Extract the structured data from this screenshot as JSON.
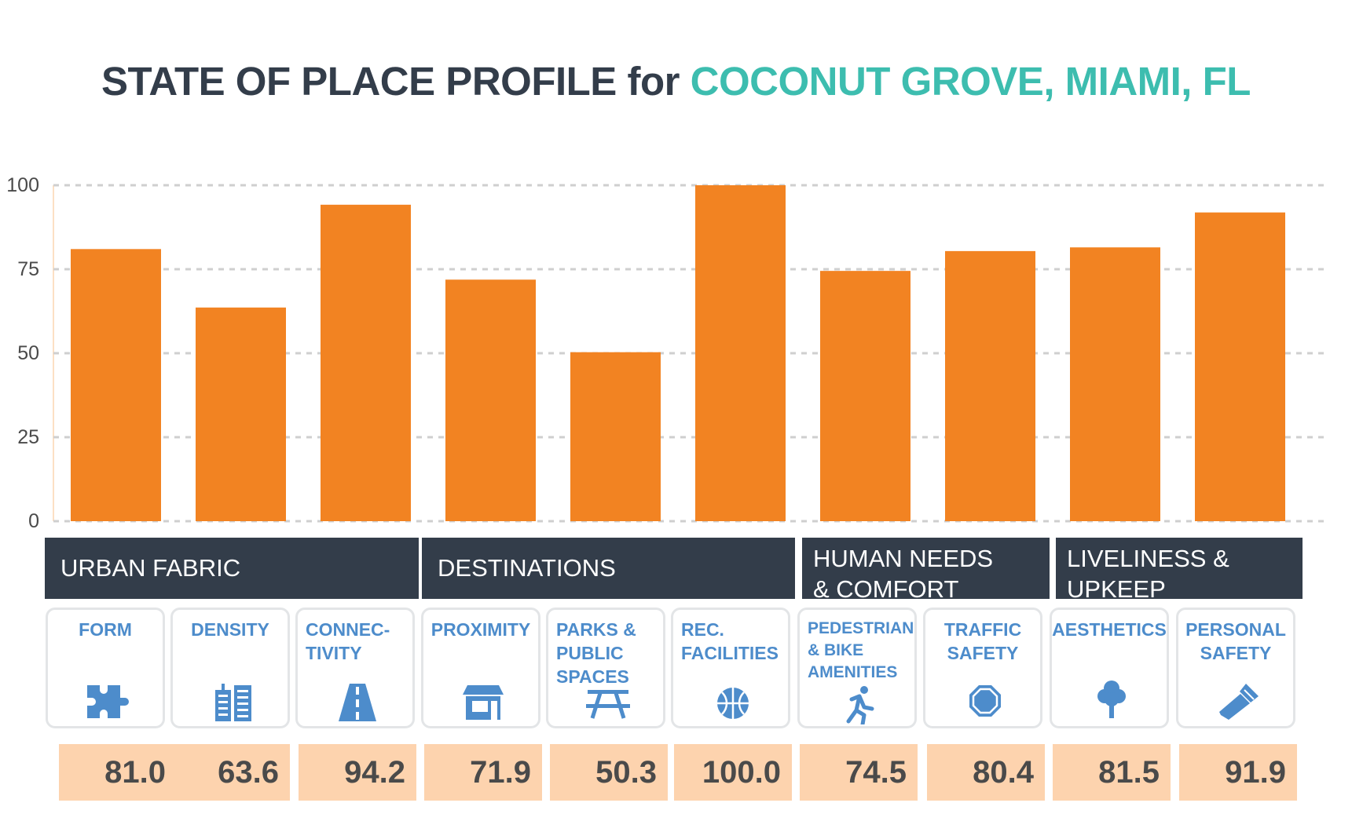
{
  "title": {
    "main": "STATE OF PLACE PROFILE for ",
    "place": "COCONUT GROVE, MIAMI, FL"
  },
  "colors": {
    "bar": "#f28322",
    "band": "#333d4a",
    "accent": "#3dbdaf",
    "metric_text": "#4d8ccb",
    "score_bg": "#fdd3ae"
  },
  "chart_data": {
    "type": "bar",
    "title": "STATE OF PLACE PROFILE for COCONUT GROVE, MIAMI, FL",
    "categories": [
      "FORM",
      "DENSITY",
      "CONNECTIVITY",
      "PROXIMITY",
      "PARKS & PUBLIC SPACES",
      "REC. FACILITIES",
      "PEDESTRIAN & BIKE AMENITIES",
      "TRAFFIC SAFETY",
      "AESTHETICS",
      "PERSONAL SAFETY"
    ],
    "values": [
      81.0,
      63.6,
      94.2,
      71.9,
      50.3,
      100.0,
      74.5,
      80.4,
      81.5,
      91.9
    ],
    "yticks": [
      0,
      25,
      50,
      75,
      100
    ],
    "ylim": [
      0,
      100
    ],
    "grid": "horizontal dashed",
    "xlabel": "",
    "ylabel": ""
  },
  "categories": [
    {
      "label": "URBAN FABRIC"
    },
    {
      "label": "DESTINATIONS"
    },
    {
      "label": "HUMAN NEEDS\n& COMFORT"
    },
    {
      "label": "LIVELINESS &\nUPKEEP"
    }
  ],
  "metrics": [
    {
      "label": "FORM",
      "icon": "puzzle-icon",
      "score": "81.0"
    },
    {
      "label": "DENSITY",
      "icon": "buildings-icon",
      "score": "63.6"
    },
    {
      "label": "CONNEC-\nTIVITY",
      "icon": "road-icon",
      "score": "94.2"
    },
    {
      "label": "PROXIMITY",
      "icon": "storefront-icon",
      "score": "71.9"
    },
    {
      "label": "PARKS &\nPUBLIC\nSPACES",
      "icon": "picnic-table-icon",
      "score": "50.3"
    },
    {
      "label": "REC.\nFACILITIES",
      "icon": "basketball-icon",
      "score": "100.0"
    },
    {
      "label": "PEDESTRIAN\n& BIKE\nAMENITIES",
      "icon": "runner-icon",
      "score": "74.5"
    },
    {
      "label": "TRAFFIC\nSAFETY",
      "icon": "stop-sign-icon",
      "score": "80.4"
    },
    {
      "label": "AESTHETICS",
      "icon": "tree-icon",
      "score": "81.5"
    },
    {
      "label": "PERSONAL\nSAFETY",
      "icon": "flashlight-icon",
      "score": "91.9"
    }
  ]
}
